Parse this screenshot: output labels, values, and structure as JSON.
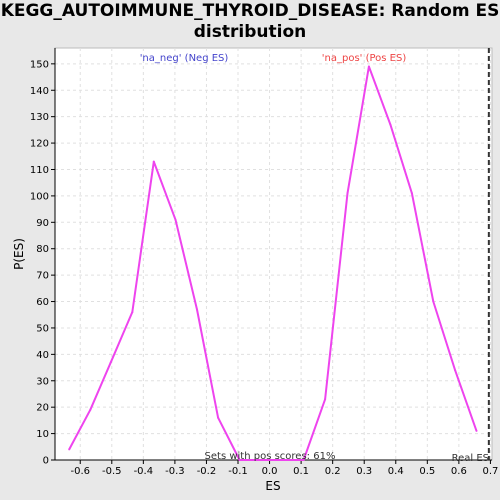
{
  "chart_data": {
    "type": "line",
    "title": "KEGG_AUTOIMMUNE_THYROID_DISEASE: Random ES\ndistribution",
    "xlabel": "ES",
    "ylabel": "P(ES)",
    "xlim": [
      -0.68,
      0.705
    ],
    "ylim": [
      0,
      156
    ],
    "xticks": [
      -0.6,
      -0.5,
      -0.4,
      -0.3,
      -0.2,
      -0.1,
      0.0,
      0.1,
      0.2,
      0.3,
      0.4,
      0.5,
      0.6,
      0.7
    ],
    "xtick_labels": [
      "-0.6",
      "-0.5",
      "-0.4",
      "-0.3",
      "-0.2",
      "-0.1",
      "0.0",
      "0.1",
      "0.2",
      "0.3",
      "0.4",
      "0.5",
      "0.6",
      "0.7"
    ],
    "yticks": [
      0,
      10,
      20,
      30,
      40,
      50,
      60,
      70,
      80,
      90,
      100,
      110,
      120,
      130,
      140,
      150
    ],
    "grid": true,
    "series": [
      {
        "color": "#ee44ee",
        "x": [
          -0.635,
          -0.568,
          -0.503,
          -0.435,
          -0.367,
          -0.298,
          -0.23,
          -0.163,
          -0.095,
          -0.028,
          0.04,
          0.108,
          0.176,
          0.247,
          0.315,
          0.383,
          0.451,
          0.519,
          0.588,
          0.656
        ],
        "y": [
          4,
          19,
          37,
          56,
          113,
          91,
          57,
          16,
          0,
          0,
          0,
          0,
          23,
          101,
          149,
          127,
          101,
          60,
          34,
          11
        ]
      }
    ],
    "annotations": {
      "neg_label": "'na_neg' (Neg ES)",
      "pos_label": "'na_pos' (Pos ES)",
      "footer": "Sets with pos scores: 61%",
      "real_es_label": "Real ES",
      "neg_color": "#4444cc",
      "pos_color": "#ee4444"
    },
    "real_es": 0.695
  }
}
